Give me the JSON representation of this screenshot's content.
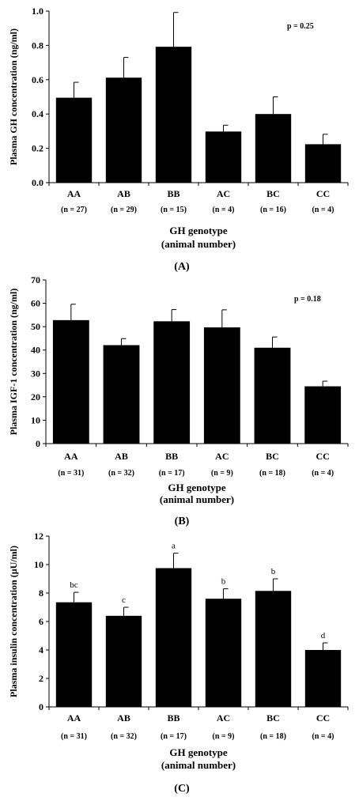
{
  "chart_data": [
    {
      "type": "bar",
      "panel_label": "(A)",
      "categories": [
        "AA",
        "AB",
        "BB",
        "AC",
        "BC",
        "CC"
      ],
      "sample_sizes": [
        "(n = 27)",
        "(n = 29)",
        "(n = 15)",
        "(n = 4)",
        "(n = 16)",
        "(n = 4)"
      ],
      "values": [
        0.495,
        0.612,
        0.792,
        0.298,
        0.4,
        0.224
      ],
      "errors": [
        0.09,
        0.118,
        0.2,
        0.037,
        0.1,
        0.058
      ],
      "ylabel": "Plasma GH concentration (ng/ml)",
      "xlabel": "GH genotype",
      "xlabel2": "(animal number)",
      "annotation": "p = 0.25",
      "ylim": [
        0,
        1.0
      ],
      "yticks": [
        "0.0",
        "0.2",
        "0.4",
        "0.6",
        "0.8",
        "1.0"
      ],
      "letters": [],
      "bar_color": "#000000"
    },
    {
      "type": "bar",
      "panel_label": "(B)",
      "categories": [
        "AA",
        "AB",
        "BB",
        "AC",
        "BC",
        "CC"
      ],
      "sample_sizes": [
        "(n = 31)",
        "(n = 32)",
        "(n = 17)",
        "(n = 9)",
        "(n = 18)",
        "(n = 4)"
      ],
      "values": [
        52.8,
        42.1,
        52.3,
        49.7,
        41.0,
        24.5
      ],
      "errors": [
        6.8,
        2.8,
        5.0,
        7.5,
        4.6,
        2.2
      ],
      "ylabel": "Plasma IGF-1 concentration (ng/ml)",
      "xlabel": "GH genotype",
      "xlabel2": "(animal number)",
      "annotation": "p = 0.18",
      "ylim": [
        0,
        70
      ],
      "yticks": [
        "0",
        "10",
        "20",
        "30",
        "40",
        "50",
        "60",
        "70"
      ],
      "letters": [],
      "bar_color": "#000000"
    },
    {
      "type": "bar",
      "panel_label": "(C)",
      "categories": [
        "AA",
        "AB",
        "BB",
        "AC",
        "BC",
        "CC"
      ],
      "sample_sizes": [
        "(n = 31)",
        "(n = 32)",
        "(n = 17)",
        "(n = 9)",
        "(n = 18)",
        "(n = 4)"
      ],
      "values": [
        7.35,
        6.4,
        9.75,
        7.6,
        8.15,
        4.0
      ],
      "errors": [
        0.7,
        0.6,
        1.05,
        0.7,
        0.85,
        0.5
      ],
      "ylabel": "Plasma insulin concentration (µU/ml)",
      "xlabel": "GH genotype",
      "xlabel2": "(animal number)",
      "annotation": "",
      "ylim": [
        0,
        12
      ],
      "yticks": [
        "0",
        "2",
        "4",
        "6",
        "8",
        "10",
        "12"
      ],
      "letters": [
        "bc",
        "c",
        "a",
        "b",
        "b",
        "d"
      ],
      "bar_color": "#000000"
    }
  ]
}
